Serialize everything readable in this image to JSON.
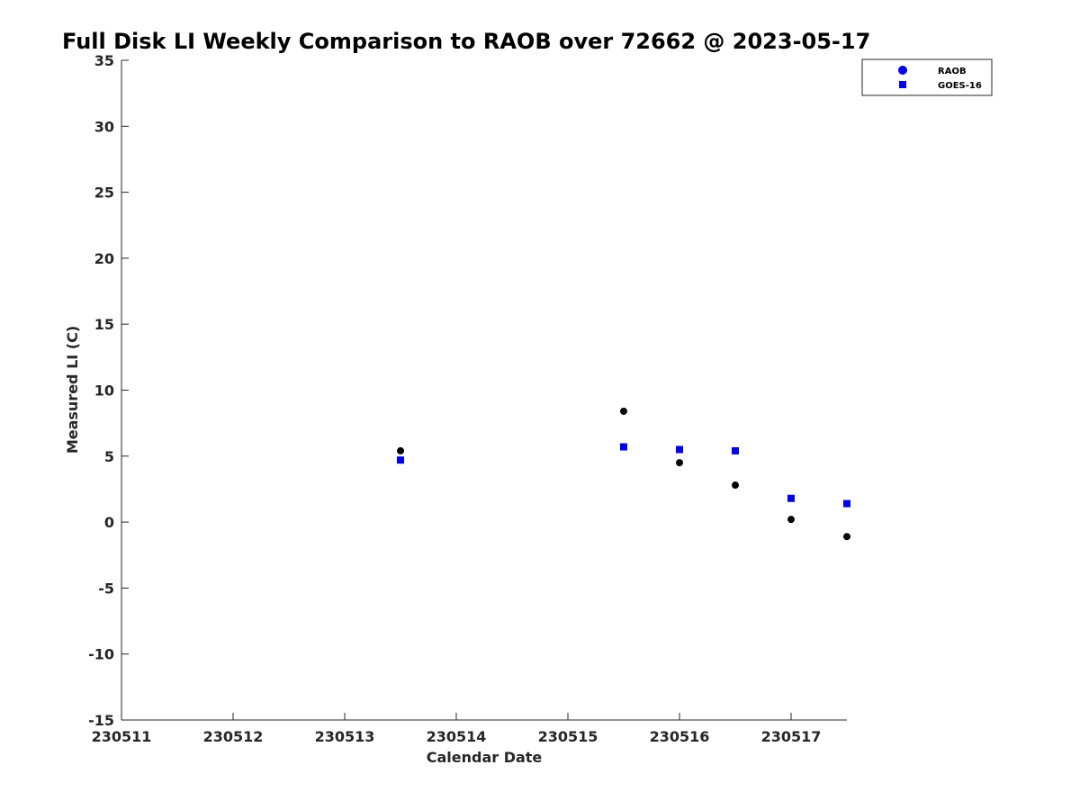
{
  "chart_data": {
    "type": "scatter",
    "title": "Full Disk LI Weekly Comparison to RAOB over 72662 @ 2023-05-17",
    "xlabel": "Calendar Date",
    "ylabel": "Measured LI (C)",
    "xlim": [
      230511,
      230517.5
    ],
    "ylim": [
      -15,
      35
    ],
    "xticks": [
      230511,
      230512,
      230513,
      230514,
      230515,
      230516,
      230517
    ],
    "xtick_labels": [
      "230511",
      "230512",
      "230513",
      "230514",
      "230515",
      "230516",
      "230517"
    ],
    "yticks": [
      35,
      30,
      25,
      20,
      15,
      10,
      5,
      0,
      -5,
      -10,
      -15
    ],
    "ytick_labels": [
      "35",
      "30",
      "25",
      "20",
      "15",
      "10",
      "5",
      "0",
      "-5",
      "-10",
      "-15"
    ],
    "grid": false,
    "legend_position": "top-right",
    "series": [
      {
        "name": "RAOB",
        "legend_color": "#0000e6",
        "point_color": "#000000",
        "marker": "circle",
        "x": [
          230513.5,
          230515.5,
          230516,
          230516.5,
          230517,
          230517.5
        ],
        "y": [
          5.4,
          8.4,
          4.5,
          2.8,
          0.2,
          -1.1
        ]
      },
      {
        "name": "GOES-16",
        "legend_color": "#0000e6",
        "point_color": "#0000e6",
        "marker": "square",
        "x": [
          230513.5,
          230515.5,
          230516,
          230516.5,
          230517,
          230517.5
        ],
        "y": [
          4.7,
          5.7,
          5.5,
          5.4,
          1.8,
          1.4
        ]
      }
    ]
  }
}
